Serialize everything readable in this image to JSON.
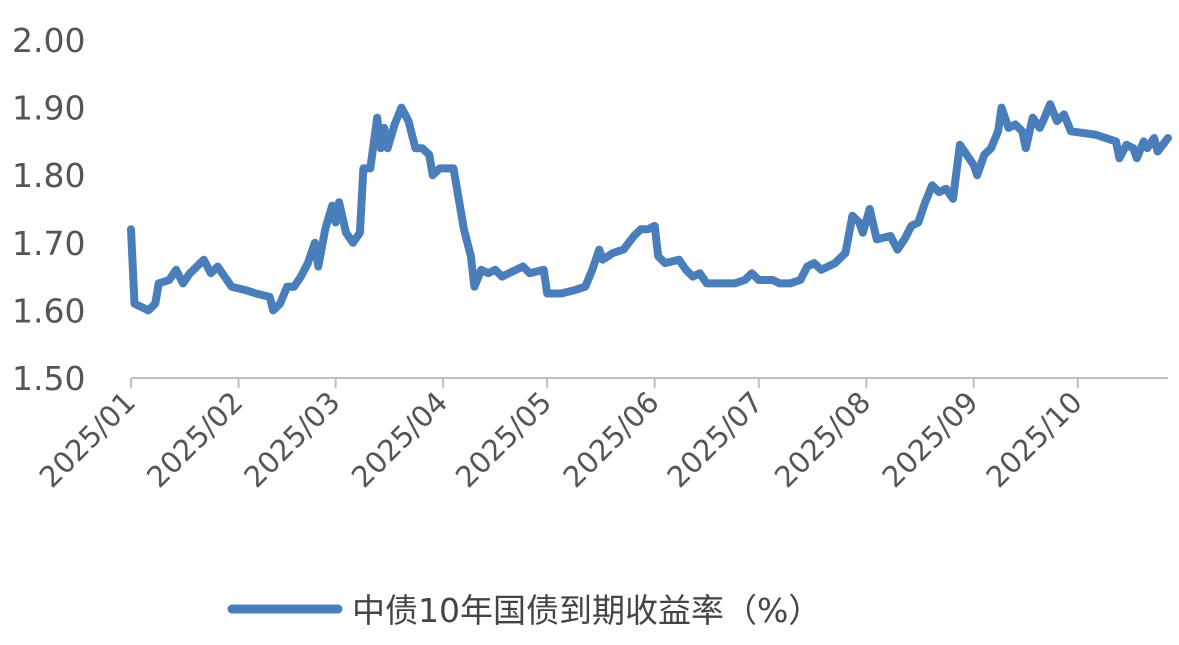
{
  "chart_data": {
    "type": "line",
    "title": "",
    "xlabel": "",
    "ylabel": "",
    "ylim": [
      1.5,
      2.0
    ],
    "y_ticks": [
      "2.00",
      "1.90",
      "1.80",
      "1.70",
      "1.60",
      "1.50"
    ],
    "x_ticks": [
      "2025/01",
      "2025/02",
      "2025/03",
      "2025/04",
      "2025/05",
      "2025/06",
      "2025/07",
      "2025/08",
      "2025/09",
      "2025/10"
    ],
    "grid": false,
    "legend": "bottom",
    "color": "#4a7ebb",
    "series": [
      {
        "name": "中债10年国债到期收益率（%）",
        "points": [
          [
            "2025-01-01",
            1.72
          ],
          [
            "2025-01-02",
            1.61
          ],
          [
            "2025-01-04",
            1.605
          ],
          [
            "2025-01-06",
            1.6
          ],
          [
            "2025-01-08",
            1.61
          ],
          [
            "2025-01-09",
            1.64
          ],
          [
            "2025-01-12",
            1.645
          ],
          [
            "2025-01-14",
            1.66
          ],
          [
            "2025-01-16",
            1.64
          ],
          [
            "2025-01-18",
            1.655
          ],
          [
            "2025-01-20",
            1.665
          ],
          [
            "2025-01-22",
            1.675
          ],
          [
            "2025-01-24",
            1.655
          ],
          [
            "2025-01-26",
            1.665
          ],
          [
            "2025-01-28",
            1.65
          ],
          [
            "2025-01-30",
            1.635
          ],
          [
            "2025-02-03",
            1.63
          ],
          [
            "2025-02-06",
            1.625
          ],
          [
            "2025-02-10",
            1.62
          ],
          [
            "2025-02-11",
            1.6
          ],
          [
            "2025-02-13",
            1.61
          ],
          [
            "2025-02-15",
            1.635
          ],
          [
            "2025-02-17",
            1.635
          ],
          [
            "2025-02-19",
            1.65
          ],
          [
            "2025-02-21",
            1.67
          ],
          [
            "2025-02-23",
            1.7
          ],
          [
            "2025-02-24",
            1.665
          ],
          [
            "2025-02-26",
            1.72
          ],
          [
            "2025-02-28",
            1.755
          ],
          [
            "2025-03-01",
            1.73
          ],
          [
            "2025-03-02",
            1.76
          ],
          [
            "2025-03-04",
            1.715
          ],
          [
            "2025-03-06",
            1.7
          ],
          [
            "2025-03-08",
            1.715
          ],
          [
            "2025-03-09",
            1.81
          ],
          [
            "2025-03-11",
            1.81
          ],
          [
            "2025-03-13",
            1.885
          ],
          [
            "2025-03-14",
            1.84
          ],
          [
            "2025-03-15",
            1.87
          ],
          [
            "2025-03-16",
            1.84
          ],
          [
            "2025-03-18",
            1.875
          ],
          [
            "2025-03-20",
            1.9
          ],
          [
            "2025-03-22",
            1.88
          ],
          [
            "2025-03-24",
            1.84
          ],
          [
            "2025-03-26",
            1.84
          ],
          [
            "2025-03-28",
            1.83
          ],
          [
            "2025-03-29",
            1.8
          ],
          [
            "2025-03-31",
            1.81
          ],
          [
            "2025-04-02",
            1.81
          ],
          [
            "2025-04-04",
            1.81
          ],
          [
            "2025-04-07",
            1.72
          ],
          [
            "2025-04-09",
            1.68
          ],
          [
            "2025-04-10",
            1.635
          ],
          [
            "2025-04-12",
            1.66
          ],
          [
            "2025-04-14",
            1.655
          ],
          [
            "2025-04-16",
            1.66
          ],
          [
            "2025-04-18",
            1.65
          ],
          [
            "2025-04-22",
            1.66
          ],
          [
            "2025-04-24",
            1.665
          ],
          [
            "2025-04-26",
            1.655
          ],
          [
            "2025-04-30",
            1.66
          ],
          [
            "2025-05-01",
            1.625
          ],
          [
            "2025-05-05",
            1.625
          ],
          [
            "2025-05-09",
            1.63
          ],
          [
            "2025-05-12",
            1.635
          ],
          [
            "2025-05-14",
            1.66
          ],
          [
            "2025-05-16",
            1.69
          ],
          [
            "2025-05-17",
            1.675
          ],
          [
            "2025-05-20",
            1.685
          ],
          [
            "2025-05-23",
            1.69
          ],
          [
            "2025-05-26",
            1.71
          ],
          [
            "2025-05-28",
            1.72
          ],
          [
            "2025-05-30",
            1.72
          ],
          [
            "2025-06-01",
            1.725
          ],
          [
            "2025-06-02",
            1.68
          ],
          [
            "2025-06-04",
            1.67
          ],
          [
            "2025-06-08",
            1.675
          ],
          [
            "2025-06-10",
            1.66
          ],
          [
            "2025-06-12",
            1.65
          ],
          [
            "2025-06-14",
            1.655
          ],
          [
            "2025-06-16",
            1.64
          ],
          [
            "2025-06-20",
            1.64
          ],
          [
            "2025-06-24",
            1.64
          ],
          [
            "2025-06-27",
            1.645
          ],
          [
            "2025-06-29",
            1.655
          ],
          [
            "2025-07-01",
            1.645
          ],
          [
            "2025-07-05",
            1.645
          ],
          [
            "2025-07-07",
            1.64
          ],
          [
            "2025-07-10",
            1.64
          ],
          [
            "2025-07-13",
            1.645
          ],
          [
            "2025-07-15",
            1.665
          ],
          [
            "2025-07-17",
            1.67
          ],
          [
            "2025-07-19",
            1.66
          ],
          [
            "2025-07-21",
            1.665
          ],
          [
            "2025-07-23",
            1.67
          ],
          [
            "2025-07-26",
            1.685
          ],
          [
            "2025-07-28",
            1.74
          ],
          [
            "2025-07-30",
            1.73
          ],
          [
            "2025-07-31",
            1.715
          ],
          [
            "2025-08-02",
            1.75
          ],
          [
            "2025-08-04",
            1.705
          ],
          [
            "2025-08-08",
            1.71
          ],
          [
            "2025-08-10",
            1.69
          ],
          [
            "2025-08-12",
            1.705
          ],
          [
            "2025-08-14",
            1.725
          ],
          [
            "2025-08-16",
            1.73
          ],
          [
            "2025-08-18",
            1.76
          ],
          [
            "2025-08-20",
            1.785
          ],
          [
            "2025-08-22",
            1.775
          ],
          [
            "2025-08-24",
            1.78
          ],
          [
            "2025-08-26",
            1.765
          ],
          [
            "2025-08-28",
            1.845
          ],
          [
            "2025-08-30",
            1.83
          ],
          [
            "2025-09-01",
            1.815
          ],
          [
            "2025-09-02",
            1.8
          ],
          [
            "2025-09-04",
            1.83
          ],
          [
            "2025-09-06",
            1.84
          ],
          [
            "2025-09-08",
            1.865
          ],
          [
            "2025-09-09",
            1.9
          ],
          [
            "2025-09-11",
            1.87
          ],
          [
            "2025-09-13",
            1.875
          ],
          [
            "2025-09-15",
            1.865
          ],
          [
            "2025-09-16",
            1.84
          ],
          [
            "2025-09-18",
            1.885
          ],
          [
            "2025-09-20",
            1.87
          ],
          [
            "2025-09-21",
            1.88
          ],
          [
            "2025-09-23",
            1.905
          ],
          [
            "2025-09-25",
            1.88
          ],
          [
            "2025-09-27",
            1.89
          ],
          [
            "2025-09-29",
            1.865
          ],
          [
            "2025-10-06",
            1.86
          ],
          [
            "2025-10-12",
            1.85
          ],
          [
            "2025-10-13",
            1.825
          ],
          [
            "2025-10-15",
            1.845
          ],
          [
            "2025-10-17",
            1.84
          ],
          [
            "2025-10-18",
            1.825
          ],
          [
            "2025-10-20",
            1.85
          ],
          [
            "2025-10-21",
            1.84
          ],
          [
            "2025-10-23",
            1.855
          ],
          [
            "2025-10-24",
            1.835
          ],
          [
            "2025-10-27",
            1.855
          ]
        ]
      }
    ]
  }
}
